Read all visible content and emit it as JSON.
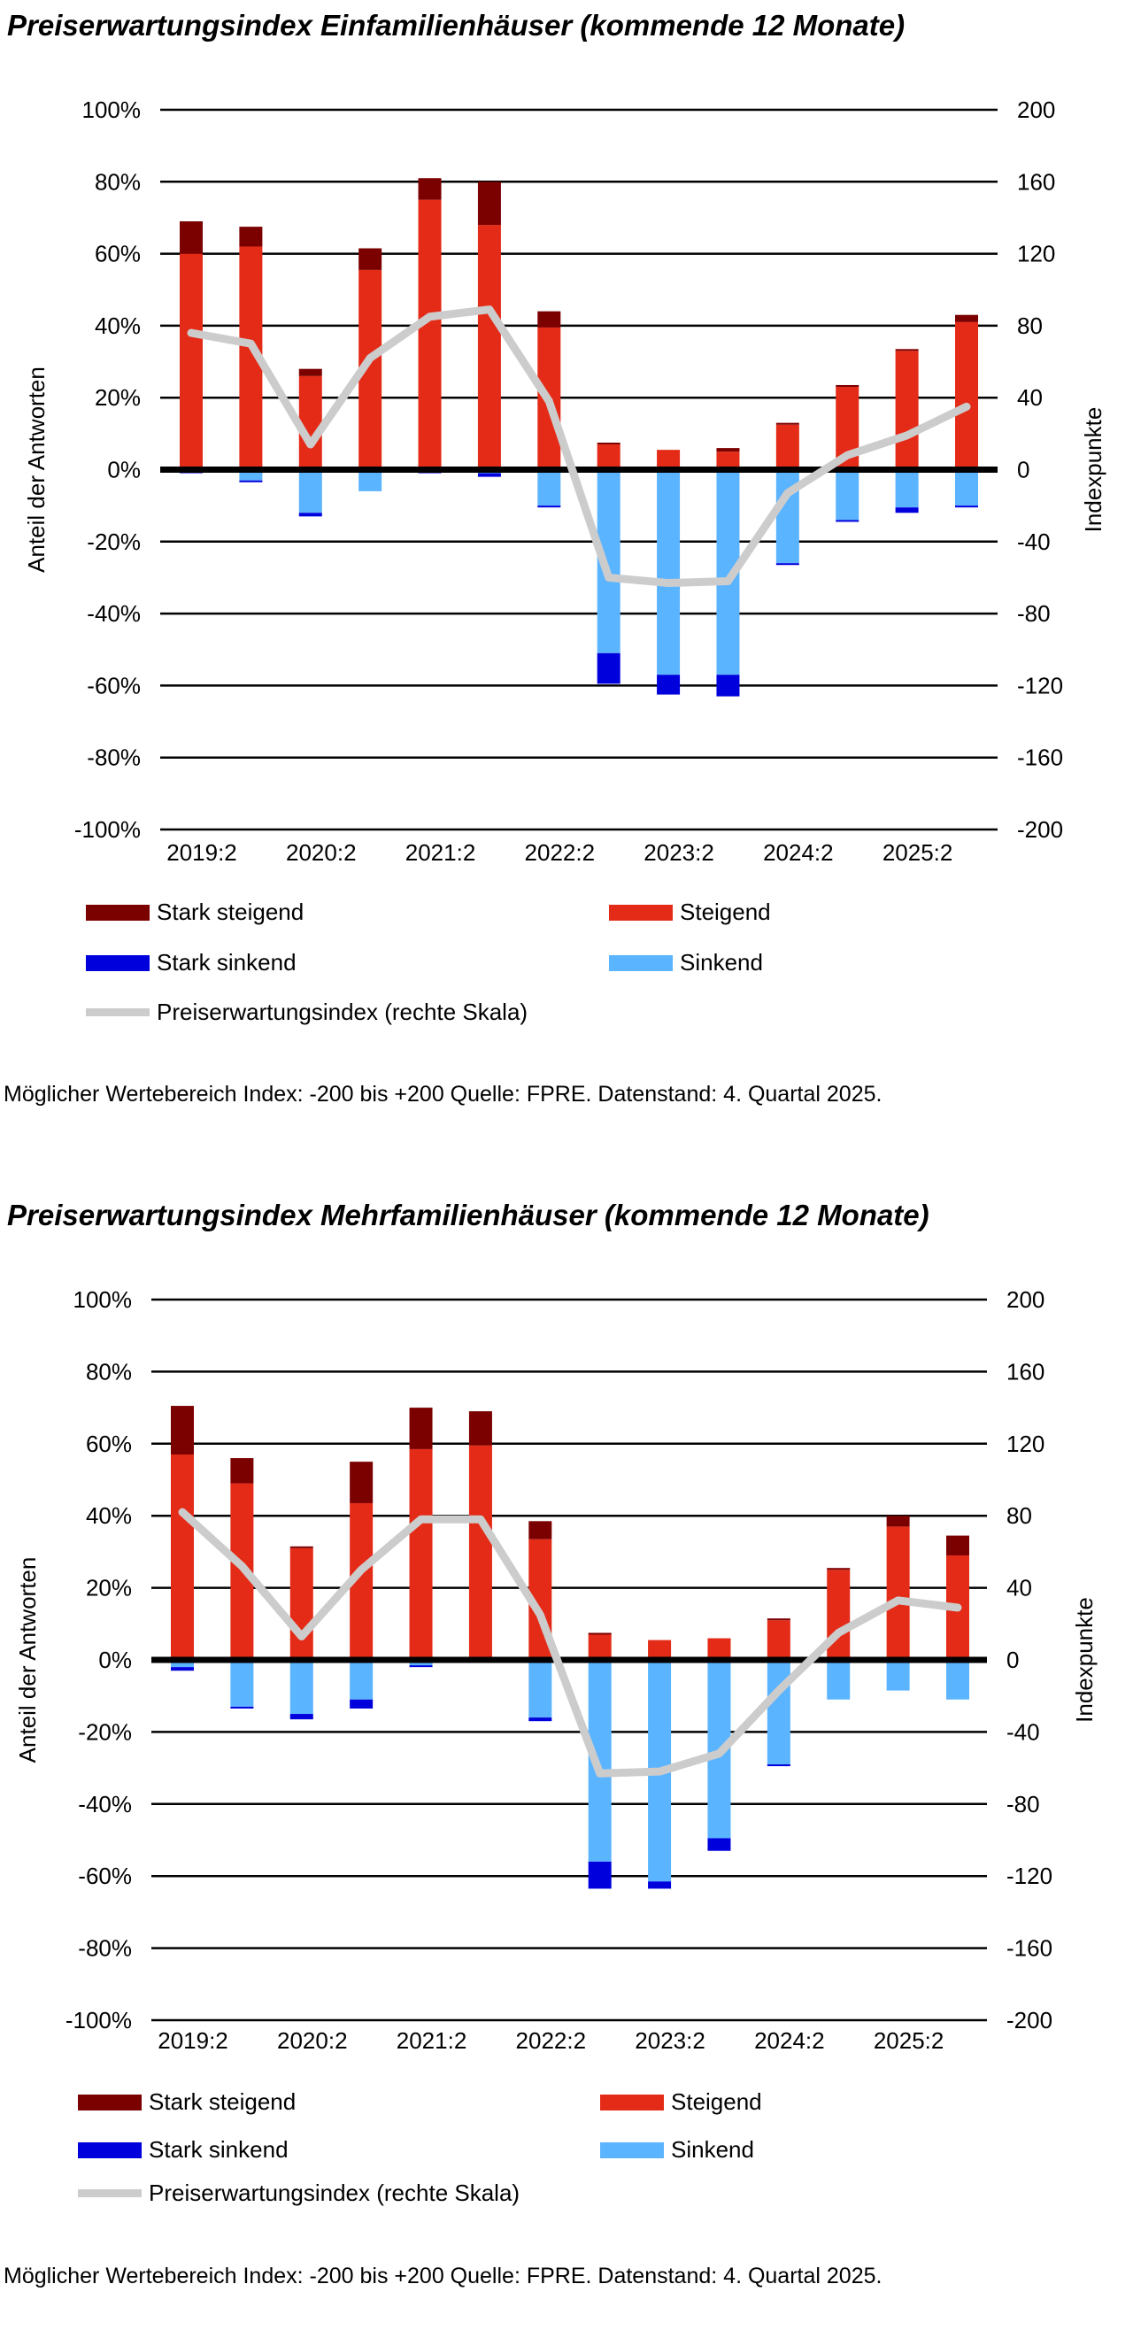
{
  "chart_data": [
    {
      "type": "bar",
      "title": "Preiserwartungsindex Einfamilienhäuser (kommende 12 Monate)",
      "ylabel": "Anteil der Antworten",
      "y2label": "Indexpunkte",
      "ylim": [
        -100,
        100
      ],
      "y2lim": [
        -200,
        200
      ],
      "yticks": [
        "100%",
        "80%",
        "60%",
        "40%",
        "20%",
        "0%",
        "-20%",
        "-40%",
        "-60%",
        "-80%",
        "-100%"
      ],
      "y2ticks": [
        "200",
        "160",
        "120",
        "80",
        "40",
        "0",
        "-40",
        "-80",
        "-120",
        "-160",
        "-200"
      ],
      "grid": true,
      "stacked": true,
      "tick_labels": [
        "2019:2",
        "2020:2",
        "2021:2",
        "2022:2",
        "2023:2",
        "2024:2",
        "2025:2"
      ],
      "series": {
        "stark_steigend": [
          9,
          5.5,
          2,
          6,
          6,
          12,
          4.5,
          0.5,
          0,
          1,
          0.5,
          0.5,
          0.5,
          2
        ],
        "steigend": [
          60,
          62,
          26,
          55.5,
          75,
          68,
          39.5,
          7,
          5.5,
          5,
          12.5,
          23,
          33,
          41
        ],
        "sinkend": [
          -0.5,
          -3,
          -12,
          -6,
          -0.5,
          -1,
          -10,
          -51,
          -57,
          -57,
          -26,
          -14,
          -10.5,
          -10
        ],
        "stark_sinkend": [
          -0.5,
          -0.5,
          -1,
          0,
          -0.5,
          -1,
          -0.5,
          -8.5,
          -5.5,
          -6,
          -0.5,
          -0.5,
          -1.5,
          -0.5
        ],
        "index": [
          76,
          70,
          14,
          62,
          85,
          89,
          38,
          -60,
          -63,
          -62,
          -13,
          8,
          19,
          35
        ]
      },
      "legend": {
        "stark_steigend": "Stark steigend",
        "steigend": "Steigend",
        "stark_sinkend": "Stark sinkend",
        "sinkend": "Sinkend",
        "index": "Preiserwartungsindex (rechte Skala)"
      },
      "footnote": "Möglicher Wertebereich Index: -200 bis +200 Quelle: FPRE. Datenstand: 4. Quartal 2025."
    },
    {
      "type": "bar",
      "title": "Preiserwartungsindex Mehrfamilienhäuser (kommende 12 Monate)",
      "ylabel": "Anteil der Antworten",
      "y2label": "Indexpunkte",
      "ylim": [
        -100,
        100
      ],
      "y2lim": [
        -200,
        200
      ],
      "yticks": [
        "100%",
        "80%",
        "60%",
        "40%",
        "20%",
        "0%",
        "-20%",
        "-40%",
        "-60%",
        "-80%",
        "-100%"
      ],
      "y2ticks": [
        "200",
        "160",
        "120",
        "80",
        "40",
        "0",
        "-40",
        "-80",
        "-120",
        "-160",
        "-200"
      ],
      "grid": true,
      "stacked": true,
      "tick_labels": [
        "2019:2",
        "2020:2",
        "2021:2",
        "2022:2",
        "2023:2",
        "2024:2",
        "2025:2"
      ],
      "series": {
        "stark_steigend": [
          13.5,
          7,
          0.5,
          11.5,
          11.5,
          9.5,
          5,
          0.5,
          0,
          0,
          0.5,
          0.5,
          3,
          5.5
        ],
        "steigend": [
          57,
          49,
          31,
          43.5,
          58.5,
          59.5,
          33.5,
          7,
          5.5,
          6,
          11,
          25,
          37,
          29
        ],
        "sinkend": [
          -2,
          -13,
          -15,
          -11,
          -1.5,
          0,
          -16,
          -56,
          -61.5,
          -49.5,
          -29,
          -11,
          -8.5,
          -11
        ],
        "stark_sinkend": [
          -1,
          -0.5,
          -1.5,
          -2.5,
          -0.5,
          0,
          -1,
          -7.5,
          -2,
          -3.5,
          -0.5,
          0,
          0,
          0
        ],
        "index": [
          82,
          52,
          13,
          50,
          78,
          78,
          25,
          -63,
          -62,
          -52,
          -17,
          15,
          33,
          29
        ]
      },
      "legend": {
        "stark_steigend": "Stark steigend",
        "steigend": "Steigend",
        "stark_sinkend": "Stark sinkend",
        "sinkend": "Sinkend",
        "index": "Preiserwartungsindex (rechte Skala)"
      },
      "footnote": "Möglicher Wertebereich Index: -200 bis +200 Quelle: FPRE. Datenstand: 4. Quartal 2025."
    }
  ],
  "colors": {
    "stark_steigend": "#7b0000",
    "steigend": "#e42b17",
    "stark_sinkend": "#0000dd",
    "sinkend": "#5bb4ff",
    "index": "#cccccc"
  }
}
